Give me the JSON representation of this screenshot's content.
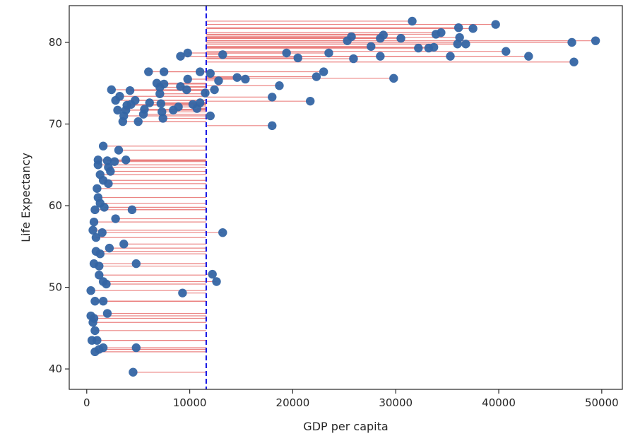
{
  "chart_data": {
    "type": "scatter",
    "xlabel": "GDP per capita",
    "ylabel": "Life Expectancy",
    "xlim": [
      -1700,
      52000
    ],
    "ylim": [
      37.5,
      84.5
    ],
    "xticks": [
      0,
      10000,
      20000,
      30000,
      40000,
      50000
    ],
    "yticks": [
      40,
      50,
      60,
      70,
      80
    ],
    "vline": 11600,
    "colors": {
      "point": "#3465a4",
      "connector": "#e8706e",
      "vline": "#1f1fe6",
      "axis": "#262626"
    },
    "points": [
      [
        31600,
        82.6
      ],
      [
        39700,
        82.2
      ],
      [
        36100,
        81.8
      ],
      [
        37500,
        81.7
      ],
      [
        34400,
        81.2
      ],
      [
        33900,
        81.0
      ],
      [
        28800,
        80.9
      ],
      [
        25700,
        80.7
      ],
      [
        28500,
        80.5
      ],
      [
        30500,
        80.5
      ],
      [
        36200,
        80.6
      ],
      [
        25300,
        80.2
      ],
      [
        49400,
        80.2
      ],
      [
        47100,
        80.0
      ],
      [
        36000,
        79.8
      ],
      [
        36800,
        79.8
      ],
      [
        27600,
        79.5
      ],
      [
        32200,
        79.3
      ],
      [
        33200,
        79.3
      ],
      [
        33700,
        79.4
      ],
      [
        40700,
        78.9
      ],
      [
        19400,
        78.7
      ],
      [
        23500,
        78.7
      ],
      [
        13200,
        78.5
      ],
      [
        42900,
        78.3
      ],
      [
        35300,
        78.3
      ],
      [
        28500,
        78.3
      ],
      [
        20500,
        78.1
      ],
      [
        25900,
        78.0
      ],
      [
        47300,
        77.6
      ],
      [
        9100,
        78.3
      ],
      [
        9800,
        78.7
      ],
      [
        6000,
        76.4
      ],
      [
        7500,
        76.4
      ],
      [
        11000,
        76.4
      ],
      [
        12000,
        76.2
      ],
      [
        23000,
        76.4
      ],
      [
        22300,
        75.8
      ],
      [
        29800,
        75.6
      ],
      [
        14600,
        75.7
      ],
      [
        15400,
        75.5
      ],
      [
        12800,
        75.3
      ],
      [
        9800,
        75.5
      ],
      [
        6800,
        75.0
      ],
      [
        7500,
        74.9
      ],
      [
        7100,
        74.5
      ],
      [
        9100,
        74.6
      ],
      [
        9700,
        74.2
      ],
      [
        18700,
        74.7
      ],
      [
        12400,
        74.2
      ],
      [
        2400,
        74.2
      ],
      [
        4200,
        74.1
      ],
      [
        7100,
        73.7
      ],
      [
        11500,
        73.8
      ],
      [
        3200,
        73.4
      ],
      [
        18000,
        73.3
      ],
      [
        2800,
        72.9
      ],
      [
        4700,
        72.9
      ],
      [
        6100,
        72.6
      ],
      [
        7200,
        72.5
      ],
      [
        3900,
        72.3
      ],
      [
        4300,
        72.4
      ],
      [
        8900,
        72.1
      ],
      [
        10300,
        72.4
      ],
      [
        11000,
        72.6
      ],
      [
        21700,
        72.8
      ],
      [
        3000,
        71.7
      ],
      [
        3800,
        71.7
      ],
      [
        5600,
        71.8
      ],
      [
        7300,
        71.5
      ],
      [
        8400,
        71.7
      ],
      [
        10700,
        71.9
      ],
      [
        3600,
        71.0
      ],
      [
        5500,
        71.2
      ],
      [
        7400,
        70.7
      ],
      [
        12000,
        71.0
      ],
      [
        3500,
        70.3
      ],
      [
        5000,
        70.3
      ],
      [
        18000,
        69.8
      ],
      [
        1600,
        67.3
      ],
      [
        3100,
        66.8
      ],
      [
        1100,
        65.6
      ],
      [
        2000,
        65.5
      ],
      [
        2700,
        65.4
      ],
      [
        3800,
        65.6
      ],
      [
        1100,
        65.0
      ],
      [
        2100,
        64.7
      ],
      [
        2300,
        64.2
      ],
      [
        1300,
        63.8
      ],
      [
        1600,
        63.1
      ],
      [
        2100,
        62.7
      ],
      [
        1000,
        62.1
      ],
      [
        1100,
        61.0
      ],
      [
        1300,
        60.3
      ],
      [
        1700,
        59.8
      ],
      [
        800,
        59.5
      ],
      [
        4400,
        59.5
      ],
      [
        2800,
        58.4
      ],
      [
        700,
        58.0
      ],
      [
        600,
        57.0
      ],
      [
        1500,
        56.7
      ],
      [
        13200,
        56.7
      ],
      [
        900,
        56.1
      ],
      [
        3600,
        55.3
      ],
      [
        2200,
        54.8
      ],
      [
        900,
        54.4
      ],
      [
        1300,
        54.1
      ],
      [
        700,
        52.9
      ],
      [
        1200,
        52.6
      ],
      [
        4800,
        52.9
      ],
      [
        1200,
        51.5
      ],
      [
        1600,
        50.7
      ],
      [
        12200,
        51.6
      ],
      [
        12600,
        50.7
      ],
      [
        1900,
        50.4
      ],
      [
        400,
        49.6
      ],
      [
        9300,
        49.3
      ],
      [
        800,
        48.3
      ],
      [
        1600,
        48.3
      ],
      [
        2000,
        46.8
      ],
      [
        400,
        46.5
      ],
      [
        700,
        46.2
      ],
      [
        600,
        45.7
      ],
      [
        800,
        44.7
      ],
      [
        500,
        43.5
      ],
      [
        1000,
        43.5
      ],
      [
        1600,
        42.6
      ],
      [
        4800,
        42.6
      ],
      [
        1200,
        42.4
      ],
      [
        800,
        42.1
      ],
      [
        4500,
        39.6
      ]
    ]
  }
}
